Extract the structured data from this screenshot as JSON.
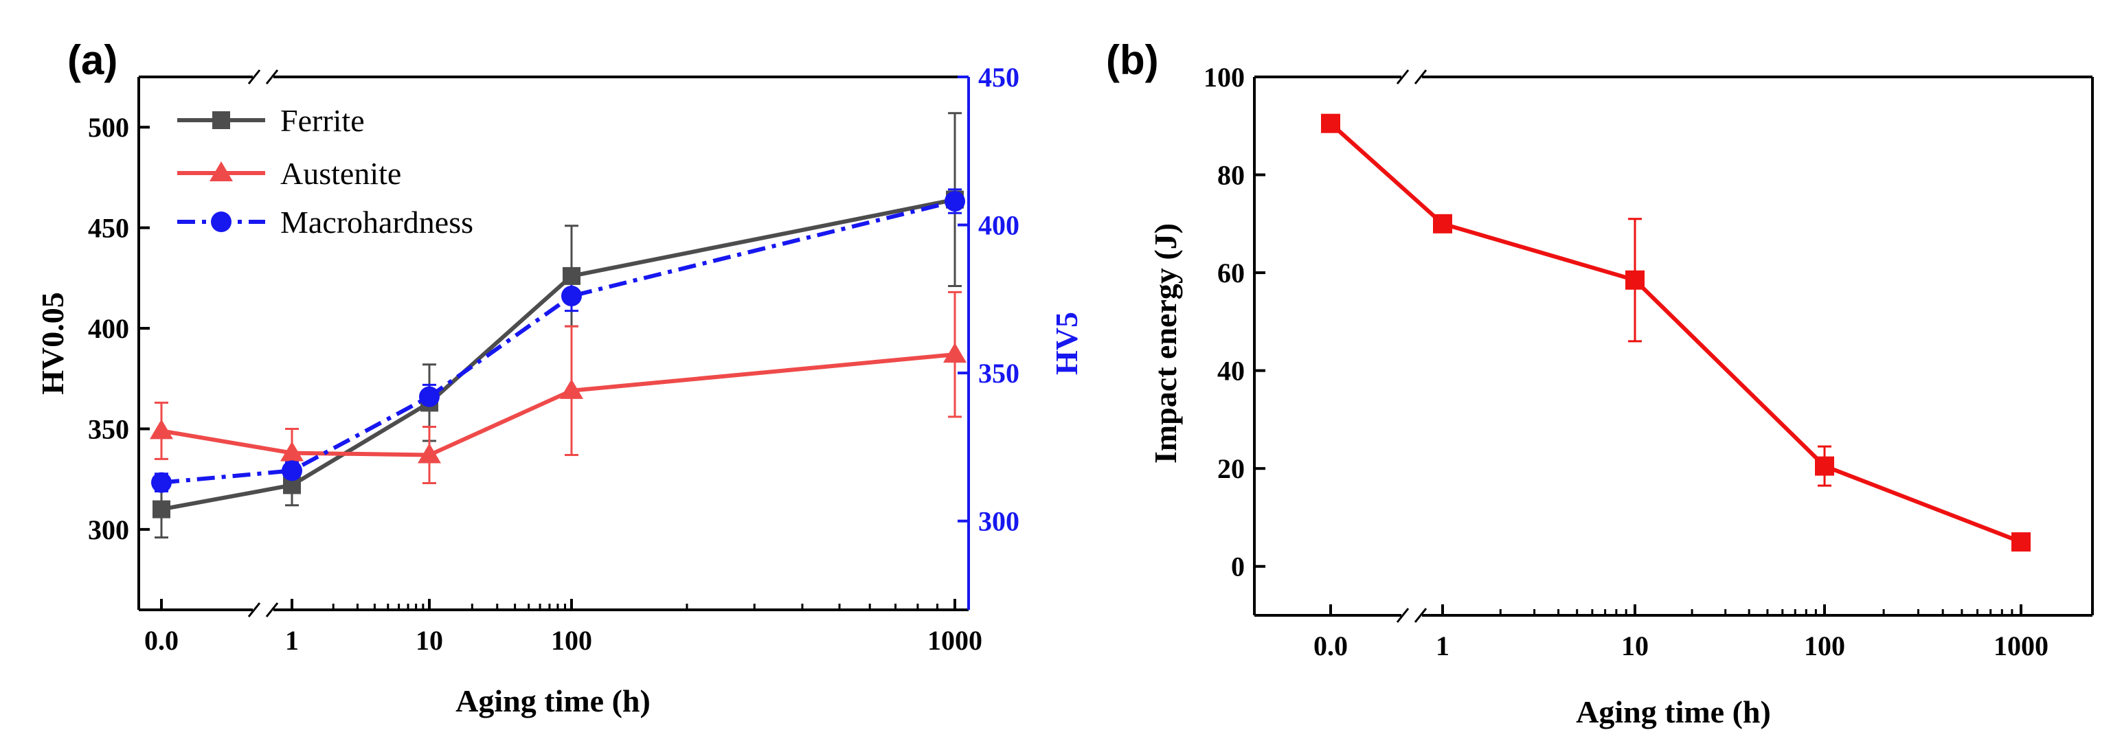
{
  "chart_data": [
    {
      "panel": "(a)",
      "type": "line",
      "xscale": "log-with-break",
      "categories": [
        "0.0",
        "1",
        "10",
        "100",
        "1000"
      ],
      "x_tick_labels": [
        "0.0",
        "1",
        "10",
        "100",
        "1000"
      ],
      "xlabel": "Aging time (h)",
      "ylabel": "HV0.05",
      "ylim": [
        260,
        525
      ],
      "y_ticks": [
        300,
        350,
        400,
        450,
        500
      ],
      "y2label": "HV5",
      "y2lim": [
        270,
        450
      ],
      "y2_ticks": [
        300,
        350,
        400,
        450
      ],
      "legend_position": "top-left",
      "series": [
        {
          "name": "Ferrite",
          "axis": "left",
          "color": "#4d4d4d",
          "marker": "square",
          "line": "solid",
          "values": [
            310,
            322,
            363,
            426,
            464
          ],
          "errors": [
            14,
            10,
            19,
            25,
            43
          ]
        },
        {
          "name": "Austenite",
          "axis": "left",
          "color": "#ef4a4a",
          "marker": "triangle",
          "line": "solid",
          "values": [
            349,
            338,
            337,
            369,
            387
          ],
          "errors": [
            14,
            12,
            14,
            32,
            31
          ]
        },
        {
          "name": "Macrohardness",
          "axis": "right",
          "color": "#1717f0",
          "marker": "circle",
          "line": "dash-dot",
          "values": [
            313,
            317,
            342,
            376,
            408
          ],
          "errors": [
            3,
            3,
            4,
            5,
            4
          ]
        }
      ]
    },
    {
      "panel": "(b)",
      "type": "line",
      "xscale": "log-with-break",
      "categories": [
        "0.0",
        "1",
        "10",
        "100",
        "1000"
      ],
      "x_tick_labels": [
        "0.0",
        "1",
        "10",
        "100",
        "1000"
      ],
      "xlabel": "Aging time (h)",
      "ylabel": "Impact energy (J)",
      "ylim": [
        -10,
        100
      ],
      "y_ticks": [
        0,
        20,
        40,
        60,
        80,
        100
      ],
      "series": [
        {
          "name": "Impact energy",
          "color": "#ee1111",
          "marker": "square",
          "line": "solid",
          "values": [
            90.5,
            70,
            58.5,
            20.5,
            5
          ],
          "errors": [
            0,
            1.5,
            12.5,
            4,
            0
          ]
        }
      ]
    }
  ]
}
